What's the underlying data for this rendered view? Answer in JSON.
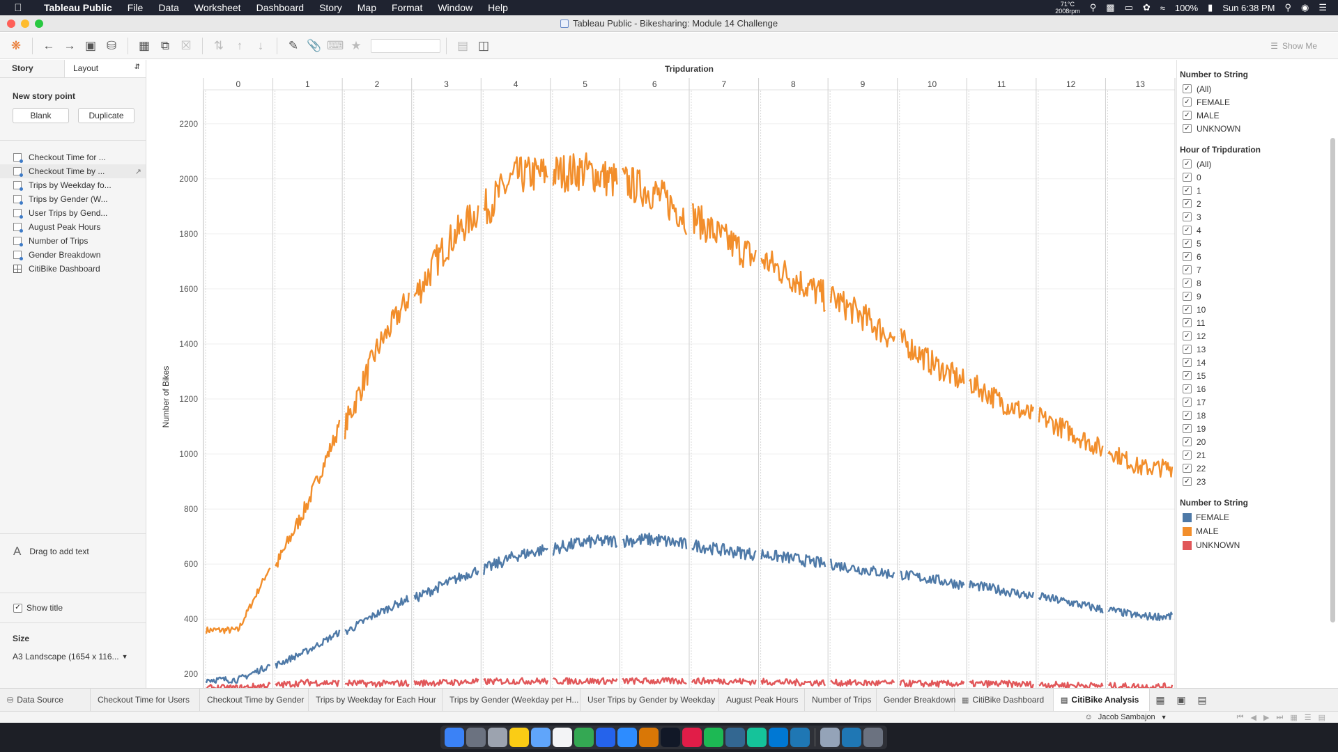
{
  "menubar": {
    "app_name": "Tableau Public",
    "items": [
      "File",
      "Data",
      "Worksheet",
      "Dashboard",
      "Story",
      "Map",
      "Format",
      "Window",
      "Help"
    ],
    "temp": "71°C",
    "fan": "2008rpm",
    "battery": "100%",
    "clock": "Sun 6:38 PM"
  },
  "window": {
    "title": "Tableau Public - Bikesharing: Module 14 Challenge"
  },
  "toolbar": {
    "show_me": "Show Me"
  },
  "story": {
    "tab_story": "Story",
    "tab_layout": "Layout",
    "new_story_point": "New story point",
    "blank_label": "Blank",
    "duplicate_label": "Duplicate",
    "sheets": [
      {
        "label": "Checkout Time for ...",
        "icon": "worksheet-icon"
      },
      {
        "label": "Checkout Time by ...",
        "icon": "worksheet-icon"
      },
      {
        "label": "Trips by Weekday fo...",
        "icon": "worksheet-icon"
      },
      {
        "label": "Trips by Gender (W...",
        "icon": "worksheet-icon"
      },
      {
        "label": "User Trips by Gend...",
        "icon": "worksheet-icon"
      },
      {
        "label": "August Peak Hours",
        "icon": "worksheet-icon"
      },
      {
        "label": "Number of Trips",
        "icon": "worksheet-icon"
      },
      {
        "label": "Gender Breakdown",
        "icon": "worksheet-icon"
      },
      {
        "label": "CitiBike Dashboard",
        "icon": "dashboard-icon"
      }
    ],
    "drag_text": "Drag to add text",
    "show_title": "Show title",
    "size_label": "Size",
    "size_value": "A3 Landscape (1654 x 116..."
  },
  "chart_data": {
    "type": "line",
    "title": "",
    "column_header": "Tripduration",
    "panels": [
      "0",
      "1",
      "2",
      "3",
      "4",
      "5",
      "6",
      "7",
      "8",
      "9",
      "10",
      "11",
      "12",
      "13"
    ],
    "ylabel": "Number of Bikes",
    "yticks": [
      200,
      400,
      600,
      800,
      1000,
      1200,
      1400,
      1600,
      1800,
      2000,
      2200
    ],
    "ylim": [
      150,
      2250
    ],
    "grid": true,
    "legend_position": "right",
    "series": [
      {
        "name": "MALE",
        "color": "#f28e2b",
        "panel_mean": [
          360,
          820,
          1380,
          1760,
          2010,
          2030,
          1950,
          1780,
          1640,
          1500,
          1330,
          1190,
          1080,
          950
        ]
      },
      {
        "name": "FEMALE",
        "color": "#4e79a7",
        "panel_mean": [
          180,
          285,
          420,
          530,
          630,
          680,
          690,
          650,
          620,
          580,
          545,
          505,
          460,
          410
        ]
      },
      {
        "name": "UNKNOWN",
        "color": "#e15759",
        "panel_mean": [
          150,
          170,
          165,
          170,
          175,
          175,
          175,
          175,
          170,
          168,
          165,
          165,
          160,
          155
        ]
      }
    ]
  },
  "filters": {
    "number_to_string_title": "Number to String",
    "gender_options": [
      "(All)",
      "FEMALE",
      "MALE",
      "UNKNOWN"
    ],
    "hour_title": "Hour of Tripduration",
    "hour_options": [
      "(All)",
      "0",
      "1",
      "2",
      "3",
      "4",
      "5",
      "6",
      "7",
      "8",
      "9",
      "10",
      "11",
      "12",
      "13",
      "14",
      "15",
      "16",
      "17",
      "18",
      "19",
      "20",
      "21",
      "22",
      "23"
    ]
  },
  "legend": {
    "title": "Number to String",
    "items": [
      {
        "label": "FEMALE",
        "color": "#4e79a7"
      },
      {
        "label": "MALE",
        "color": "#f28e2b"
      },
      {
        "label": "UNKNOWN",
        "color": "#e15759"
      }
    ]
  },
  "tabs": {
    "data_source": "Data Source",
    "sheets": [
      "Checkout Time for Users",
      "Checkout Time by Gender",
      "Trips by Weekday for Each Hour",
      "Trips by Gender (Weekday per H...",
      "User Trips by Gender by Weekday",
      "August Peak Hours",
      "Number of Trips",
      "Gender Breakdown",
      "CitiBike Dashboard",
      "CitiBike Analysis"
    ]
  },
  "status": {
    "user": "Jacob Sambajon"
  }
}
